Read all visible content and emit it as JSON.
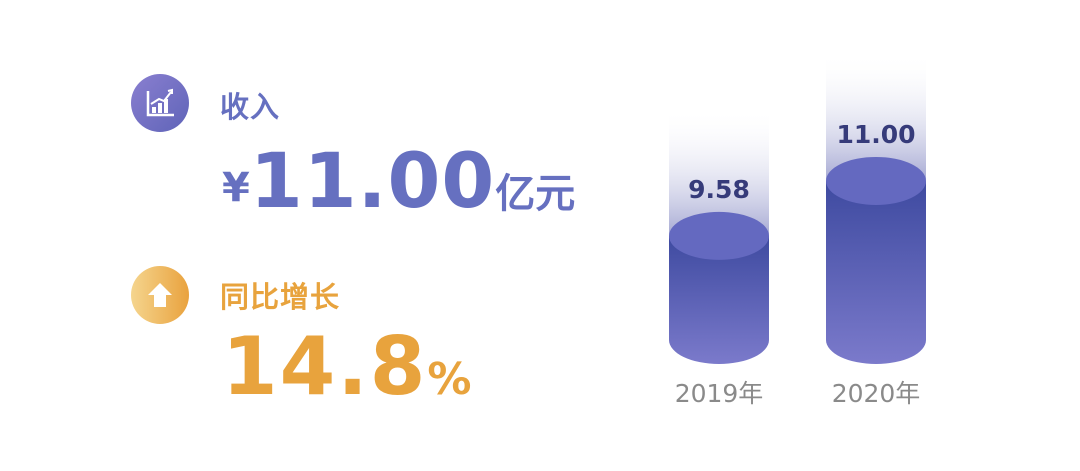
{
  "revenue": {
    "label": "收入",
    "currency": "¥",
    "value": "11.00",
    "unit": "亿元",
    "icon": "bar-chart-up-icon",
    "color": "#6670c0"
  },
  "growth": {
    "label": "同比增长",
    "value": "14.8",
    "unit": "%",
    "icon": "arrow-up-icon",
    "color": "#e8a33d"
  },
  "chart_data": {
    "type": "bar",
    "categories": [
      "2019年",
      "2020年"
    ],
    "values": [
      9.58,
      11.0
    ],
    "data_labels": [
      "9.58",
      "11.00"
    ],
    "style": "3d-cylinder",
    "color": "#5a5fb5",
    "label_color": "#363b7a"
  }
}
